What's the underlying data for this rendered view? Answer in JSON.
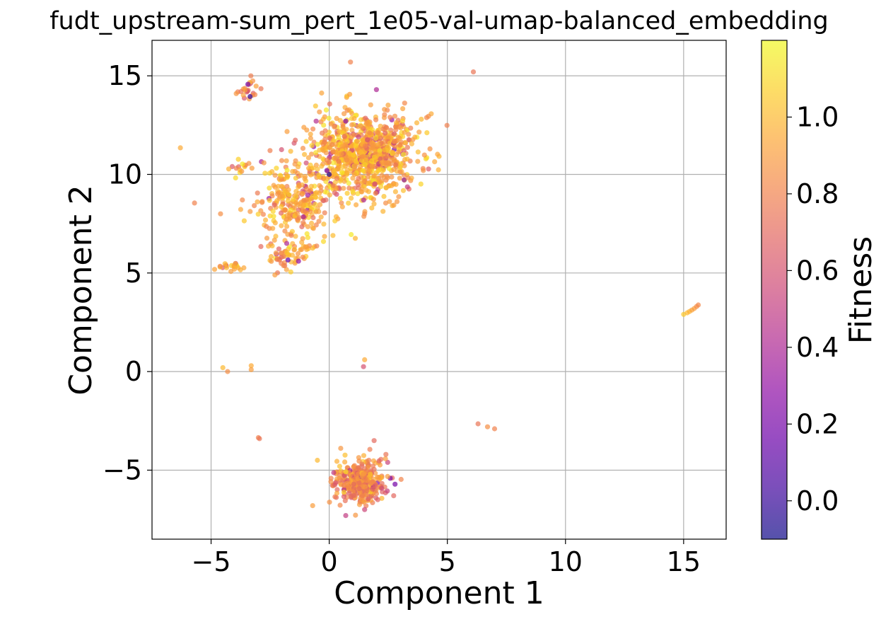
{
  "chart_data": {
    "type": "scatter",
    "title": "fudt_upstream-sum_pert_1e05-val-umap-balanced_embedding",
    "xlabel": "Component 1",
    "ylabel": "Component 2",
    "xlim": [
      -7.5,
      16.8
    ],
    "ylim": [
      -8.5,
      16.8
    ],
    "xticks": [
      -5,
      0,
      5,
      10,
      15
    ],
    "xtick_labels": [
      "−5",
      "0",
      "5",
      "10",
      "15"
    ],
    "yticks": [
      -5,
      0,
      5,
      10,
      15
    ],
    "ytick_labels": [
      "−5",
      "0",
      "5",
      "10",
      "15"
    ],
    "grid": true,
    "colorbar": {
      "label": "Fitness",
      "range": [
        -0.1,
        1.2
      ],
      "ticks": [
        0.0,
        0.2,
        0.4,
        0.6,
        0.8,
        1.0
      ],
      "tick_labels": [
        "0.0",
        "0.2",
        "0.4",
        "0.6",
        "0.8",
        "1.0"
      ],
      "colormap": "plasma",
      "alpha": 0.7
    },
    "clusters": [
      {
        "center": [
          1.5,
          11.0
        ],
        "spread": [
          1.5,
          1.4
        ],
        "count": 900,
        "fitness_mean": 0.93
      },
      {
        "center": [
          -1.5,
          8.5
        ],
        "spread": [
          1.0,
          1.5
        ],
        "count": 280,
        "fitness_mean": 0.92
      },
      {
        "center": [
          1.3,
          -5.6
        ],
        "spread": [
          0.75,
          0.7
        ],
        "count": 380,
        "fitness_mean": 0.82
      },
      {
        "center": [
          -1.8,
          5.7
        ],
        "spread": [
          0.4,
          0.4
        ],
        "count": 40,
        "fitness_mean": 0.9
      },
      {
        "center": [
          -3.4,
          14.2
        ],
        "spread": [
          0.3,
          0.4
        ],
        "count": 25,
        "fitness_mean": 0.8
      },
      {
        "center": [
          -4.1,
          5.3
        ],
        "spread": [
          0.4,
          0.15
        ],
        "count": 20,
        "fitness_mean": 0.95
      },
      {
        "center": [
          -3.7,
          10.5
        ],
        "spread": [
          0.3,
          0.3
        ],
        "count": 15,
        "fitness_mean": 0.9
      },
      {
        "center": [
          -0.9,
          6.3
        ],
        "spread": [
          0.2,
          0.1
        ],
        "count": 8,
        "fitness_mean": 0.95
      }
    ],
    "points": [
      {
        "x": 15.0,
        "y": 2.9,
        "fitness": 1.05
      },
      {
        "x": 15.15,
        "y": 2.98,
        "fitness": 1.0
      },
      {
        "x": 15.25,
        "y": 3.05,
        "fitness": 0.98
      },
      {
        "x": 15.35,
        "y": 3.12,
        "fitness": 0.92
      },
      {
        "x": 15.45,
        "y": 3.2,
        "fitness": 0.9
      },
      {
        "x": 15.55,
        "y": 3.3,
        "fitness": 0.85
      },
      {
        "x": 15.62,
        "y": 3.38,
        "fitness": 0.82
      },
      {
        "x": 6.1,
        "y": 15.2,
        "fitness": 0.75
      },
      {
        "x": 0.9,
        "y": 15.7,
        "fitness": 0.8
      },
      {
        "x": -6.3,
        "y": 11.35,
        "fitness": 0.95
      },
      {
        "x": -5.7,
        "y": 8.55,
        "fitness": 0.8
      },
      {
        "x": -4.6,
        "y": 8.0,
        "fitness": 0.85
      },
      {
        "x": -4.5,
        "y": 0.2,
        "fitness": 1.0
      },
      {
        "x": -4.3,
        "y": 0.0,
        "fitness": 0.85
      },
      {
        "x": -3.3,
        "y": 0.3,
        "fitness": 0.95
      },
      {
        "x": -3.3,
        "y": 0.1,
        "fitness": 0.9
      },
      {
        "x": 1.5,
        "y": 0.6,
        "fitness": 0.95
      },
      {
        "x": 1.45,
        "y": 0.25,
        "fitness": 0.6
      },
      {
        "x": -3.0,
        "y": -3.35,
        "fitness": 0.8
      },
      {
        "x": -2.95,
        "y": -3.4,
        "fitness": 0.75
      },
      {
        "x": 6.3,
        "y": -2.65,
        "fitness": 0.75
      },
      {
        "x": 6.7,
        "y": -2.8,
        "fitness": 0.85
      },
      {
        "x": 7.0,
        "y": -2.9,
        "fitness": 0.8
      },
      {
        "x": 4.2,
        "y": 12.95,
        "fitness": 0.85
      },
      {
        "x": 3.9,
        "y": 12.8,
        "fitness": 1.0
      },
      {
        "x": 0.0,
        "y": 10.0,
        "fitness": -0.05
      },
      {
        "x": -0.1,
        "y": 10.2,
        "fitness": 0.2
      },
      {
        "x": 0.7,
        "y": 12.7,
        "fitness": 0.25
      },
      {
        "x": 2.0,
        "y": 14.3,
        "fitness": 0.4
      },
      {
        "x": 0.7,
        "y": -7.3,
        "fitness": 0.5
      },
      {
        "x": 1.5,
        "y": -7.0,
        "fitness": 0.55
      },
      {
        "x": -0.7,
        "y": -6.8,
        "fitness": 0.9
      },
      {
        "x": -0.5,
        "y": -4.5,
        "fitness": 1.0
      },
      {
        "x": 1.9,
        "y": -3.5,
        "fitness": 0.7
      },
      {
        "x": 2.4,
        "y": -4.2,
        "fitness": 0.75
      },
      {
        "x": -1.8,
        "y": 6.5,
        "fitness": 0.4
      },
      {
        "x": -1.3,
        "y": 5.6,
        "fitness": 0.3
      },
      {
        "x": -2.3,
        "y": 4.9,
        "fitness": 0.9
      },
      {
        "x": 1.8,
        "y": 8.3,
        "fitness": 1.0
      },
      {
        "x": 1.5,
        "y": 8.0,
        "fitness": 0.85
      }
    ]
  }
}
